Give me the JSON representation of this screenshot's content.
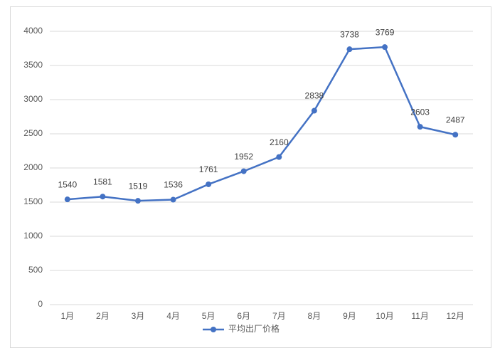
{
  "chart_data": {
    "type": "line",
    "categories": [
      "1月",
      "2月",
      "3月",
      "4月",
      "5月",
      "6月",
      "7月",
      "8月",
      "9月",
      "10月",
      "11月",
      "12月"
    ],
    "series": [
      {
        "name": "平均出厂价格",
        "color": "#4472c4",
        "values": [
          1540,
          1581,
          1519,
          1536,
          1761,
          1952,
          2160,
          2838,
          3738,
          3769,
          2603,
          2487
        ]
      }
    ],
    "ylim": [
      0,
      4000
    ],
    "yticks": [
      0,
      500,
      1000,
      1500,
      2000,
      2500,
      3000,
      3500,
      4000
    ],
    "grid": true,
    "legend": "bottom"
  }
}
